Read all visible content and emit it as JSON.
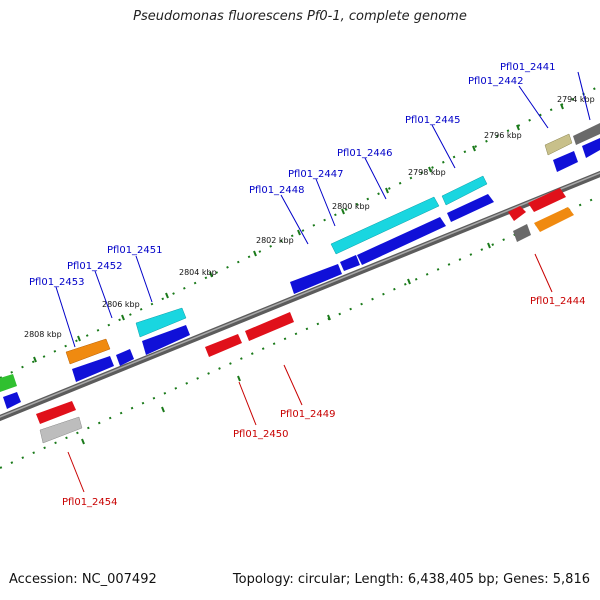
{
  "title": "Pseudomonas fluorescens Pf0-1, complete genome",
  "footer": {
    "accession": "Accession: NC_007492",
    "summary": "Topology: circular; Length: 6,438,405 bp; Genes: 5,816"
  },
  "colors": {
    "backbone": "#7a7a7a",
    "forward_label": "#0000c8",
    "reverse_label": "#c80000",
    "tick": "#1a7a1a",
    "blue": "#1010d8",
    "cyan": "#19d6e0",
    "orange": "#f08a10",
    "red": "#e0101a",
    "gray": "#8a8a8a",
    "lightgray": "#bdbdbd",
    "olive": "#c8c08a",
    "green": "#30c030"
  },
  "kbp_labels": [
    "2794 kbp",
    "2796 kbp",
    "2798 kbp",
    "2800 kbp",
    "2802 kbp",
    "2804 kbp",
    "2806 kbp",
    "2808 kbp"
  ],
  "forward_genes": [
    "Pfl01_2441",
    "Pfl01_2442",
    "Pfl01_2445",
    "Pfl01_2446",
    "Pfl01_2447",
    "Pfl01_2448",
    "Pfl01_2451",
    "Pfl01_2452",
    "Pfl01_2453"
  ],
  "reverse_genes": [
    "Pfl01_2444",
    "Pfl01_2449",
    "Pfl01_2450",
    "Pfl01_2454"
  ]
}
